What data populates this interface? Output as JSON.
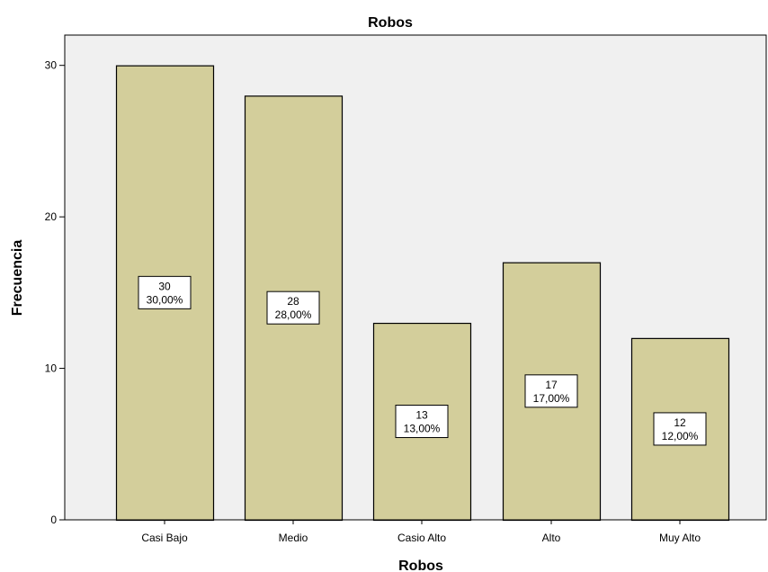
{
  "chart_data": {
    "type": "bar",
    "title": "Robos",
    "xlabel": "Robos",
    "ylabel": "Frecuencia",
    "categories": [
      "Casi Bajo",
      "Medio",
      "Casio Alto",
      "Alto",
      "Muy Alto"
    ],
    "values": [
      30,
      28,
      13,
      17,
      12
    ],
    "percent_labels": [
      "30,00%",
      "28,00%",
      "13,00%",
      "17,00%",
      "12,00%"
    ],
    "count_labels": [
      "30",
      "28",
      "13",
      "17",
      "12"
    ],
    "ylim": [
      0,
      32
    ],
    "yticks": [
      0,
      10,
      20,
      30
    ],
    "ytick_labels": [
      "0",
      "10",
      "20",
      "30"
    ],
    "grid": false,
    "colors": {
      "bar_fill": "#d3ce9b",
      "bar_stroke": "#000000",
      "plot_background": "#f0f0f0",
      "page_background": "#ffffff"
    }
  }
}
